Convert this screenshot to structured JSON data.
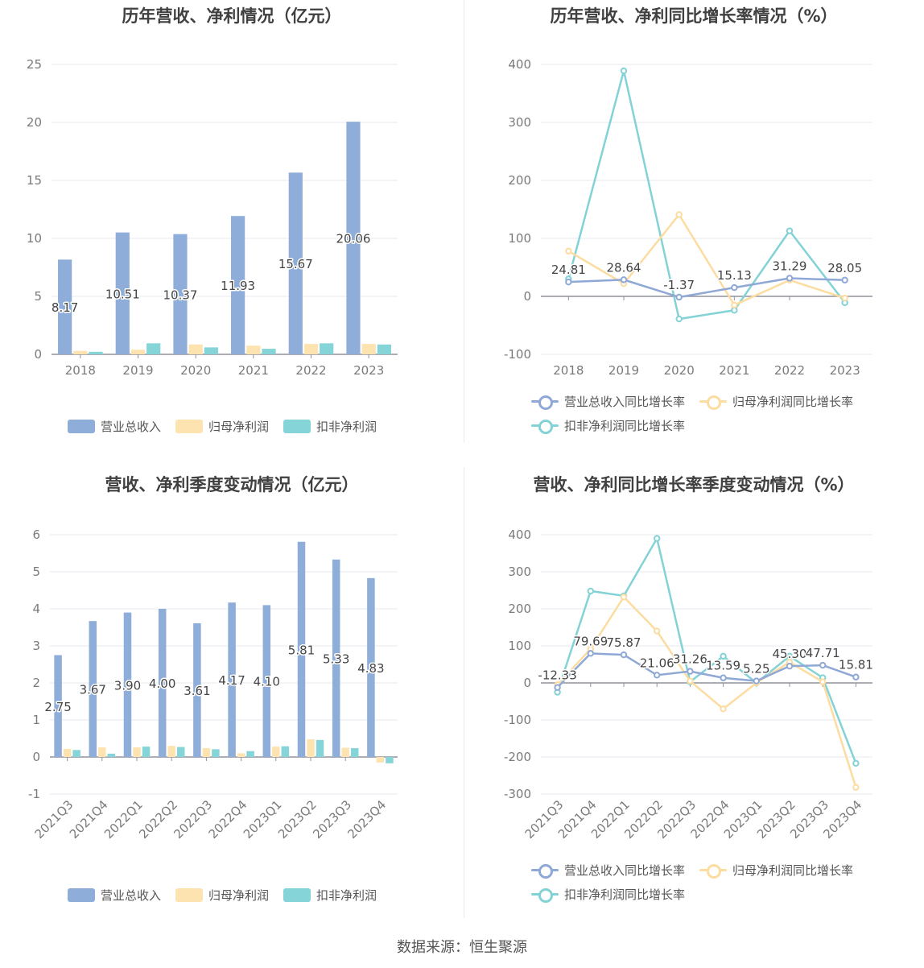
{
  "colors": {
    "revenue": "#8fadd9",
    "net_profit": "#fde3b0",
    "deducted_profit": "#84d4d8",
    "rev_growth": "#8fa8d6",
    "np_growth": "#fcdca0",
    "dp_growth": "#83d2d6"
  },
  "footer": "数据来源：恒生聚源",
  "chart_data": [
    {
      "type": "bar",
      "title": "历年营收、净利情况（亿元）",
      "categories": [
        "2018",
        "2019",
        "2020",
        "2021",
        "2022",
        "2023"
      ],
      "ylim": [
        0,
        25
      ],
      "yticks": [
        "0",
        "5",
        "10",
        "15",
        "20",
        "25"
      ],
      "series": [
        {
          "name": "营业总收入",
          "values": [
            8.17,
            10.51,
            10.37,
            11.93,
            15.67,
            20.06
          ],
          "labels": [
            "8.17",
            "10.51",
            "10.37",
            "11.93",
            "15.67",
            "20.06"
          ]
        },
        {
          "name": "归母净利润",
          "values": [
            0.3,
            0.4,
            0.85,
            0.75,
            0.9,
            0.9
          ]
        },
        {
          "name": "扣非净利润",
          "values": [
            0.22,
            0.95,
            0.6,
            0.48,
            0.95,
            0.85
          ]
        }
      ],
      "legend": "bottom",
      "grid": true
    },
    {
      "type": "line",
      "title": "历年营收、净利同比增长率情况（%）",
      "categories": [
        "2018",
        "2019",
        "2020",
        "2021",
        "2022",
        "2023"
      ],
      "ylim": [
        -100,
        400
      ],
      "yticks": [
        "-100",
        "0",
        "100",
        "200",
        "300",
        "400"
      ],
      "series": [
        {
          "name": "营业总收入同比增长率",
          "values": [
            24.81,
            28.64,
            -1.37,
            15.13,
            31.29,
            28.05
          ],
          "labels": [
            "24.81",
            "28.64",
            "-1.37",
            "15.13",
            "31.29",
            "28.05"
          ]
        },
        {
          "name": "归母净利润同比增长率",
          "values": [
            78,
            22,
            141,
            -15,
            28,
            -3
          ]
        },
        {
          "name": "扣非净利润同比增长率",
          "values": [
            30,
            389,
            -39,
            -24,
            113,
            -11
          ]
        }
      ],
      "legend": "bottom",
      "grid": true
    },
    {
      "type": "bar",
      "title": "营收、净利季度变动情况（亿元）",
      "categories": [
        "2021Q3",
        "2021Q4",
        "2022Q1",
        "2022Q2",
        "2022Q3",
        "2022Q4",
        "2023Q1",
        "2023Q2",
        "2023Q3",
        "2023Q4"
      ],
      "ylim": [
        -1,
        6
      ],
      "yticks": [
        "-1",
        "0",
        "1",
        "2",
        "3",
        "4",
        "5",
        "6"
      ],
      "series": [
        {
          "name": "营业总收入",
          "values": [
            2.75,
            3.67,
            3.9,
            4.0,
            3.61,
            4.17,
            4.1,
            5.81,
            5.33,
            4.83
          ],
          "labels": [
            "2.75",
            "3.67",
            "3.90",
            "4.00",
            "3.61",
            "4.17",
            "4.10",
            "5.81",
            "5.33",
            "4.83"
          ]
        },
        {
          "name": "归母净利润",
          "values": [
            0.22,
            0.26,
            0.26,
            0.3,
            0.24,
            0.1,
            0.28,
            0.48,
            0.25,
            -0.15
          ]
        },
        {
          "name": "扣非净利润",
          "values": [
            0.19,
            0.09,
            0.28,
            0.27,
            0.21,
            0.16,
            0.29,
            0.46,
            0.24,
            -0.17
          ]
        }
      ],
      "legend": "bottom",
      "grid": true
    },
    {
      "type": "line",
      "title": "营收、净利同比增长率季度变动情况（%）",
      "categories": [
        "2021Q3",
        "2021Q4",
        "2022Q1",
        "2022Q2",
        "2022Q3",
        "2022Q4",
        "2023Q1",
        "2023Q2",
        "2023Q3",
        "2023Q4"
      ],
      "ylim": [
        -300,
        400
      ],
      "yticks": [
        "-300",
        "-200",
        "-100",
        "0",
        "100",
        "200",
        "300",
        "400"
      ],
      "series": [
        {
          "name": "营业总收入同比增长率",
          "values": [
            -12.33,
            79.69,
            75.87,
            21.06,
            31.26,
            13.59,
            5.25,
            45.3,
            47.71,
            15.81
          ],
          "labels": [
            "-12.33",
            "79.69",
            "75.87",
            "21.06",
            "31.26",
            "13.59",
            "5.25",
            "45.30",
            "47.71",
            "15.81"
          ]
        },
        {
          "name": "归母净利润同比增长率",
          "values": [
            -5,
            92,
            232,
            140,
            5,
            -70,
            0,
            56,
            3,
            -282
          ]
        },
        {
          "name": "扣非净利润同比增长率",
          "values": [
            -25,
            248,
            235,
            390,
            3,
            72,
            0,
            72,
            14,
            -217
          ]
        }
      ],
      "legend": "bottom",
      "grid": true
    }
  ]
}
